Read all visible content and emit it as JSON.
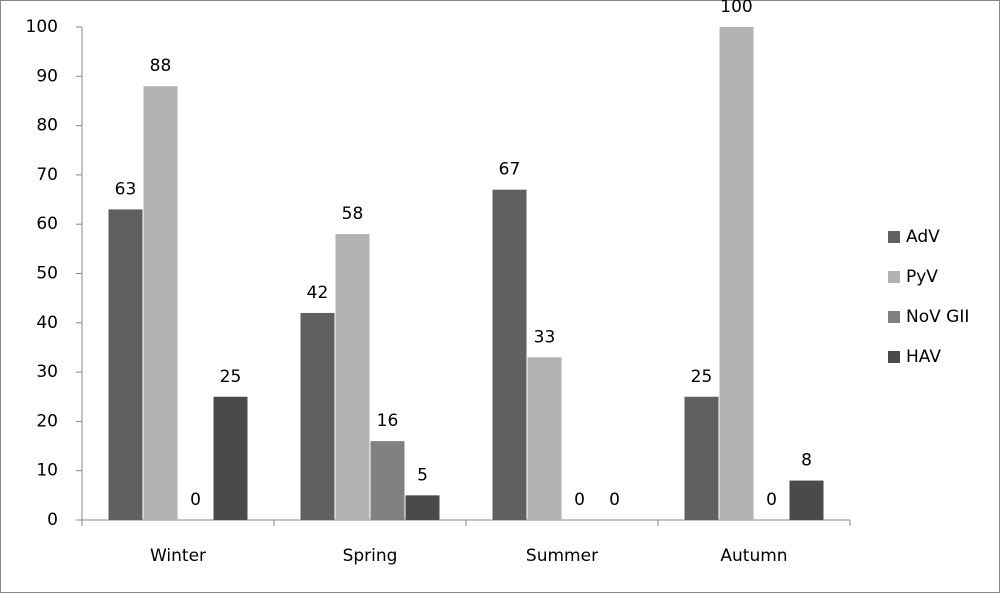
{
  "chart_data": {
    "type": "bar",
    "categories": [
      "Winter",
      "Spring",
      "Summer",
      "Autumn"
    ],
    "series": [
      {
        "name": "AdV",
        "color": "#606060",
        "values": [
          63,
          42,
          67,
          25
        ]
      },
      {
        "name": "PyV",
        "color": "#b3b3b3",
        "values": [
          88,
          58,
          33,
          100
        ]
      },
      {
        "name": "NoV GII",
        "color": "#818181",
        "values": [
          0,
          16,
          0,
          0
        ]
      },
      {
        "name": "HAV",
        "color": "#4a4a4a",
        "values": [
          25,
          5,
          0,
          8
        ]
      }
    ],
    "ylim": [
      0,
      100
    ],
    "yticks": [
      0,
      10,
      20,
      30,
      40,
      50,
      60,
      70,
      80,
      90,
      100
    ],
    "grid": false,
    "legend": "right"
  }
}
